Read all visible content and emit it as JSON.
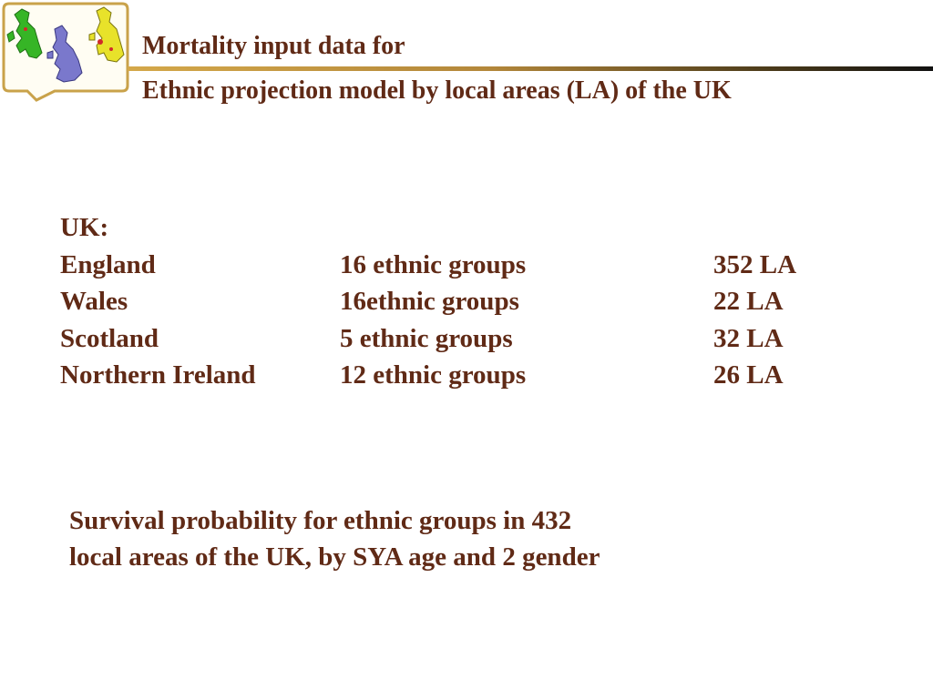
{
  "header": {
    "title_line1": "Mortality input data for",
    "title_line2": "Ethnic projection model by local areas (LA) of the UK"
  },
  "logo": {
    "icon": "uk-maps-logo",
    "colors": {
      "frame": "#c9a24a",
      "map_green": "#36b526",
      "map_blue": "#7a78cc",
      "map_yellow": "#e8e22a",
      "map_red": "#d02a2a"
    }
  },
  "uk_table": {
    "heading": "UK:",
    "rows": [
      {
        "country": "England",
        "groups": "16 ethnic groups",
        "la": "352 LA"
      },
      {
        "country": "Wales",
        "groups": "16ethnic groups",
        "la": "22 LA"
      },
      {
        "country": "Scotland",
        "groups": "5 ethnic groups",
        "la": "32 LA"
      },
      {
        "country": "Northern Ireland",
        "groups": "12 ethnic groups",
        "la": "26 LA"
      }
    ]
  },
  "summary": {
    "line1": "Survival probability for ethnic groups in 432",
    "line2": "local areas of the UK, by SYA age and 2 gender"
  },
  "colors": {
    "text": "#602a16"
  }
}
